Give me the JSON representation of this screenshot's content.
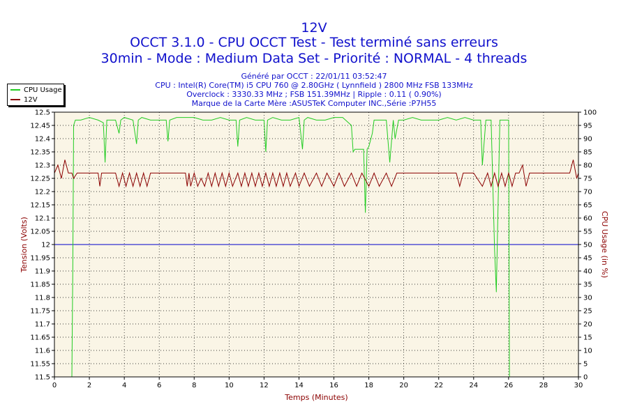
{
  "header": {
    "title": "12V",
    "line1": "OCCT 3.1.0 - CPU OCCT Test - Test terminé sans erreurs",
    "line2": "30min - Mode : Medium Data Set - Priorité : NORMAL - 4 threads",
    "info1": "Généré par OCCT : 22/01/11 03:52:47",
    "info2": "CPU : Intel(R) Core(TM) i5 CPU 760 @ 2.80GHz ( Lynnfield ) 2800 MHz FSB 133MHz",
    "info3": "Overclock : 3330.33 MHz ; FSB 151.39MHz | Ripple : 0.11 ( 0.90%)",
    "info4": "Marque de la Carte Mère :ASUSTeK Computer INC.,Série :P7H55"
  },
  "legend": {
    "items": [
      {
        "label": "CPU Usage",
        "color": "#22cc22"
      },
      {
        "label": "12V",
        "color": "#8b0000"
      }
    ]
  },
  "chart_data": {
    "type": "line",
    "xlabel": "Temps (Minutes)",
    "ylabel": "Tension (Volts)",
    "y2label": "CPU Usage (in %)",
    "xlim": [
      0,
      30
    ],
    "ylim": [
      11.5,
      12.5
    ],
    "y2lim": [
      0,
      100
    ],
    "x_ticks": [
      "0",
      "2",
      "4",
      "6",
      "8",
      "10",
      "12",
      "14",
      "16",
      "18",
      "20",
      "22",
      "24",
      "26",
      "28",
      "30"
    ],
    "y_ticks": [
      "11.5",
      "11.55",
      "11.6",
      "11.65",
      "11.7",
      "11.75",
      "11.8",
      "11.85",
      "11.9",
      "11.95",
      "12",
      "12.05",
      "12.1",
      "12.15",
      "12.2",
      "12.25",
      "12.3",
      "12.35",
      "12.4",
      "12.45",
      "12.5"
    ],
    "y2_ticks": [
      "0",
      "5",
      "10",
      "15",
      "20",
      "25",
      "30",
      "35",
      "40",
      "45",
      "50",
      "55",
      "60",
      "65",
      "70",
      "75",
      "80",
      "85",
      "90",
      "95",
      "100"
    ],
    "grid": true,
    "legend_position": "top-left",
    "reference_line": {
      "y": 12.0,
      "color": "#0000cc"
    },
    "series": [
      {
        "name": "CPU Usage",
        "axis": "right",
        "color": "#22cc22",
        "x": [
          0,
          0.9,
          1.0,
          1.05,
          1.1,
          1.2,
          1.5,
          2.0,
          2.5,
          2.8,
          2.9,
          3.0,
          3.5,
          3.7,
          3.8,
          4.0,
          4.5,
          4.7,
          4.8,
          5.0,
          5.5,
          6.0,
          6.4,
          6.5,
          6.6,
          7.0,
          7.5,
          8.0,
          8.5,
          9.0,
          9.5,
          10.0,
          10.4,
          10.5,
          10.6,
          11.0,
          11.5,
          12.0,
          12.1,
          12.2,
          12.5,
          13.0,
          13.5,
          14.0,
          14.2,
          14.3,
          14.5,
          15.0,
          15.5,
          16.0,
          16.5,
          17.0,
          17.1,
          17.2,
          17.5,
          17.7,
          17.8,
          17.9,
          18.0,
          18.2,
          18.3,
          18.5,
          19.0,
          19.2,
          19.4,
          19.5,
          19.7,
          20.0,
          20.5,
          21.0,
          21.5,
          22.0,
          22.5,
          23.0,
          23.5,
          24.0,
          24.4,
          24.5,
          24.7,
          25.0,
          25.2,
          25.3,
          25.4,
          25.5,
          25.8,
          26.0,
          26.05,
          26.1,
          26.2
        ],
        "values": [
          null,
          null,
          0,
          40,
          95,
          97,
          97,
          98,
          97,
          96,
          81,
          97,
          97,
          92,
          97,
          98,
          97,
          88,
          97,
          98,
          97,
          97,
          97,
          89,
          97,
          98,
          98,
          98,
          97,
          97,
          98,
          97,
          97,
          87,
          97,
          98,
          97,
          97,
          85,
          97,
          98,
          97,
          97,
          98,
          86,
          97,
          98,
          97,
          97,
          98,
          98,
          95,
          85,
          86,
          86,
          86,
          62,
          86,
          87,
          92,
          97,
          97,
          97,
          81,
          97,
          90,
          97,
          97,
          98,
          97,
          97,
          97,
          98,
          97,
          98,
          97,
          97,
          80,
          97,
          97,
          48,
          32,
          65,
          97,
          97,
          97,
          0,
          null,
          null
        ]
      },
      {
        "name": "12V",
        "axis": "left",
        "color": "#8b0000",
        "x": [
          0,
          0.2,
          0.4,
          0.6,
          0.8,
          1.0,
          1.1,
          1.3,
          1.6,
          2.0,
          2.5,
          2.6,
          2.7,
          3.0,
          3.5,
          3.7,
          3.9,
          4.1,
          4.3,
          4.5,
          4.7,
          4.9,
          5.1,
          5.3,
          5.5,
          6.0,
          7.0,
          7.5,
          7.6,
          7.7,
          7.8,
          8.0,
          8.2,
          8.4,
          8.6,
          8.8,
          9.0,
          9.2,
          9.4,
          9.6,
          9.8,
          10.0,
          10.2,
          10.5,
          10.7,
          10.9,
          11.1,
          11.3,
          11.5,
          11.7,
          11.9,
          12.1,
          12.3,
          12.5,
          12.7,
          12.9,
          13.1,
          13.3,
          13.5,
          13.8,
          14.0,
          14.3,
          14.6,
          15.0,
          15.3,
          15.6,
          16.0,
          16.3,
          16.6,
          17.0,
          17.3,
          17.6,
          18.0,
          18.3,
          18.6,
          19.0,
          19.3,
          19.6,
          20.0,
          21.0,
          22.0,
          23.0,
          23.2,
          23.4,
          23.6,
          24.0,
          24.5,
          24.8,
          25.0,
          25.2,
          25.4,
          25.6,
          25.8,
          26.0,
          26.2,
          26.4,
          26.6,
          26.8,
          27.0,
          27.2,
          27.5,
          28.0,
          28.5,
          29.0,
          29.5,
          29.7,
          29.9,
          30.0
        ],
        "values": [
          12.27,
          12.3,
          12.25,
          12.32,
          12.27,
          12.27,
          12.25,
          12.27,
          12.27,
          12.27,
          12.27,
          12.22,
          12.27,
          12.27,
          12.27,
          12.22,
          12.27,
          12.22,
          12.27,
          12.22,
          12.27,
          12.22,
          12.27,
          12.22,
          12.27,
          12.27,
          12.27,
          12.27,
          12.22,
          12.27,
          12.22,
          12.27,
          12.22,
          12.25,
          12.22,
          12.27,
          12.22,
          12.27,
          12.22,
          12.27,
          12.22,
          12.27,
          12.22,
          12.27,
          12.22,
          12.27,
          12.22,
          12.27,
          12.22,
          12.27,
          12.22,
          12.27,
          12.22,
          12.27,
          12.22,
          12.27,
          12.22,
          12.27,
          12.22,
          12.27,
          12.22,
          12.27,
          12.22,
          12.27,
          12.22,
          12.27,
          12.22,
          12.27,
          12.22,
          12.27,
          12.22,
          12.27,
          12.22,
          12.27,
          12.22,
          12.27,
          12.22,
          12.27,
          12.27,
          12.27,
          12.27,
          12.27,
          12.22,
          12.27,
          12.27,
          12.27,
          12.22,
          12.27,
          12.22,
          12.27,
          12.22,
          12.27,
          12.22,
          12.27,
          12.22,
          12.27,
          12.27,
          12.3,
          12.22,
          12.27,
          12.27,
          12.27,
          12.27,
          12.27,
          12.27,
          12.32,
          12.25,
          12.27
        ]
      }
    ]
  }
}
